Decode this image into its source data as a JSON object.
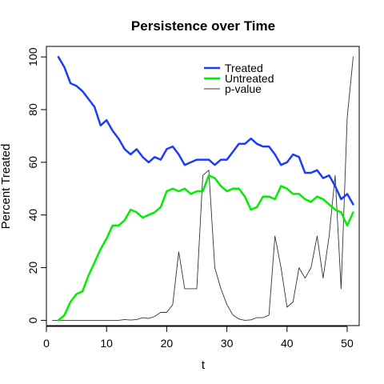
{
  "chart_data": {
    "type": "line",
    "title": "Persistence over Time",
    "xlabel": "t",
    "ylabel": "Percent Treated",
    "xlim": [
      0,
      52
    ],
    "ylim": [
      -2,
      104
    ],
    "xticks": [
      0,
      10,
      20,
      30,
      40,
      50
    ],
    "yticks": [
      0,
      20,
      40,
      60,
      80,
      100
    ],
    "grid": false,
    "legend_position": "top-right",
    "series": [
      {
        "name": "Treated",
        "color": "#1a3cff",
        "width": 2.5,
        "x": [
          2,
          3,
          4,
          5,
          6,
          7,
          8,
          9,
          10,
          11,
          12,
          13,
          14,
          15,
          16,
          17,
          18,
          19,
          20,
          21,
          22,
          23,
          24,
          25,
          26,
          27,
          28,
          29,
          30,
          31,
          32,
          33,
          34,
          35,
          36,
          37,
          38,
          39,
          40,
          41,
          42,
          43,
          44,
          45,
          46,
          47,
          48,
          49,
          50,
          51
        ],
        "values": [
          100,
          96,
          90,
          89,
          87,
          84,
          81,
          74,
          76,
          72,
          69,
          65,
          63,
          65,
          62,
          60,
          62,
          61,
          65,
          66,
          63,
          59,
          60,
          61,
          61,
          61,
          59,
          61,
          61,
          64,
          67,
          67,
          69,
          67,
          66,
          66,
          63,
          59,
          60,
          63,
          62,
          56,
          56,
          57,
          54,
          55,
          51,
          46,
          48,
          44
        ]
      },
      {
        "name": "Untreated",
        "color": "#00ee00",
        "width": 2.5,
        "x": [
          2,
          3,
          4,
          5,
          6,
          7,
          8,
          9,
          10,
          11,
          12,
          13,
          14,
          15,
          16,
          17,
          18,
          19,
          20,
          21,
          22,
          23,
          24,
          25,
          26,
          27,
          28,
          29,
          30,
          31,
          32,
          33,
          34,
          35,
          36,
          37,
          38,
          39,
          40,
          41,
          42,
          43,
          44,
          45,
          46,
          47,
          48,
          49,
          50,
          51
        ],
        "values": [
          0,
          2,
          7,
          10,
          11,
          17,
          22,
          27,
          31,
          36,
          36,
          38,
          42,
          41,
          39,
          40,
          41,
          43,
          49,
          50,
          49,
          50,
          48,
          49,
          49,
          55,
          54,
          51,
          49,
          50,
          50,
          47,
          42,
          43,
          47,
          47,
          46,
          51,
          50,
          48,
          48,
          46,
          45,
          47,
          46,
          44,
          42,
          41,
          36,
          41
        ]
      },
      {
        "name": "p-value",
        "color": "#333333",
        "width": 0.9,
        "x": [
          1,
          2,
          3,
          4,
          5,
          6,
          7,
          8,
          9,
          10,
          11,
          12,
          13,
          14,
          15,
          16,
          17,
          18,
          19,
          20,
          21,
          22,
          23,
          24,
          25,
          26,
          27,
          28,
          29,
          30,
          31,
          32,
          33,
          34,
          35,
          36,
          37,
          38,
          39,
          40,
          41,
          42,
          43,
          44,
          45,
          46,
          47,
          48,
          49,
          50,
          51
        ],
        "values": [
          0,
          0,
          0,
          0,
          0,
          0,
          0,
          0,
          0,
          0,
          0,
          0,
          0.3,
          0.1,
          0.3,
          1,
          0.7,
          1.5,
          3,
          3,
          6,
          26,
          12,
          12,
          12,
          55,
          57,
          20,
          12,
          6,
          2,
          0.5,
          0,
          0.2,
          1,
          1,
          2,
          32,
          20,
          5,
          7,
          20,
          16,
          20,
          32,
          16,
          32,
          55,
          12,
          77,
          100
        ]
      }
    ]
  }
}
